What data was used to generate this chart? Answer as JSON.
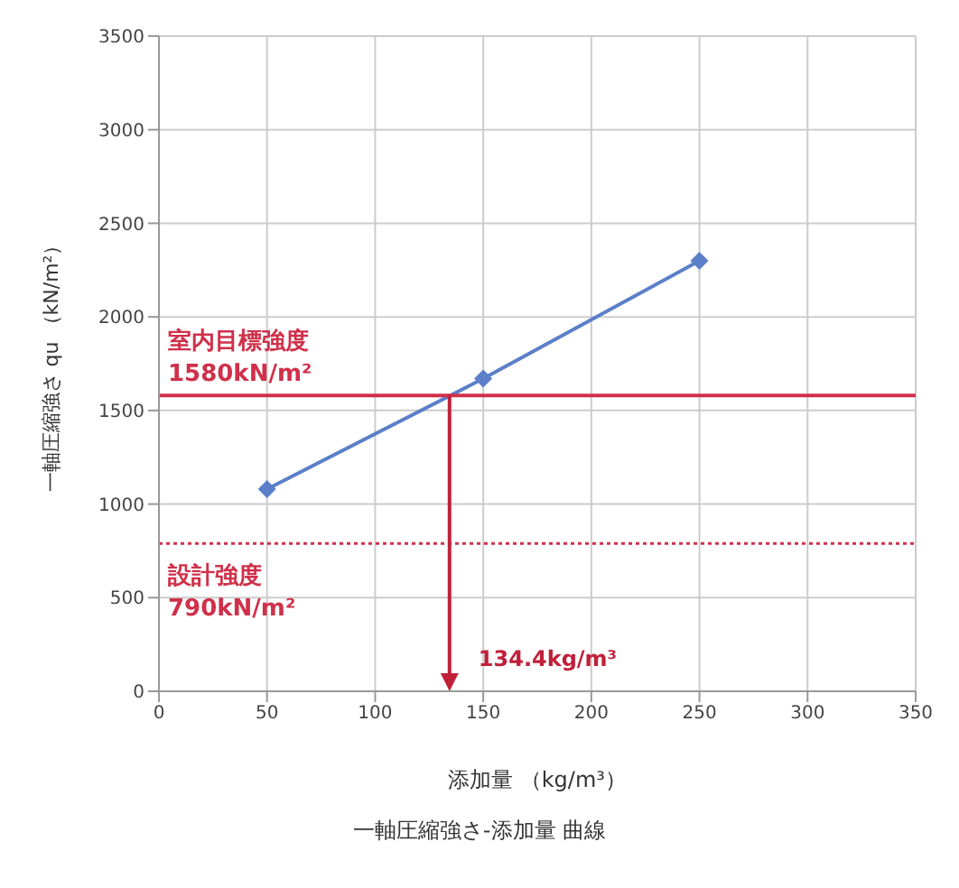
{
  "chart_data": {
    "type": "line",
    "title": "一軸圧縮強さ-添加量 曲線",
    "xlabel": "添加量 （kg/m³）",
    "ylabel": "一軸圧縮強さ qu （kN/m²）",
    "x": [
      50,
      150,
      250
    ],
    "series": [
      {
        "color": "#5b7fc9",
        "values": [
          1080,
          1670,
          2300
        ]
      }
    ],
    "marker": "diamond",
    "line_style": "solid",
    "grid": true,
    "xlim": [
      0,
      350
    ],
    "xticks": [
      0,
      50,
      100,
      150,
      200,
      250,
      300,
      350
    ],
    "ylim": [
      0,
      3500
    ],
    "yticks": [
      0,
      500,
      1000,
      1500,
      2000,
      2500,
      3000,
      3500
    ],
    "ref_lines": [
      {
        "axis": "y",
        "value": 1580,
        "label": "室内目標強度\n1580kN/m²",
        "color": "#d0304a",
        "line_style": "solid"
      },
      {
        "axis": "y",
        "value": 790,
        "label": "設計強度\n790kN/m²",
        "color": "#d0304a",
        "line_style": "dotted"
      },
      {
        "axis": "x",
        "value": 134.4,
        "label": "134.4kg/m³",
        "color": "#c0203a",
        "line_style": "solid"
      }
    ]
  }
}
